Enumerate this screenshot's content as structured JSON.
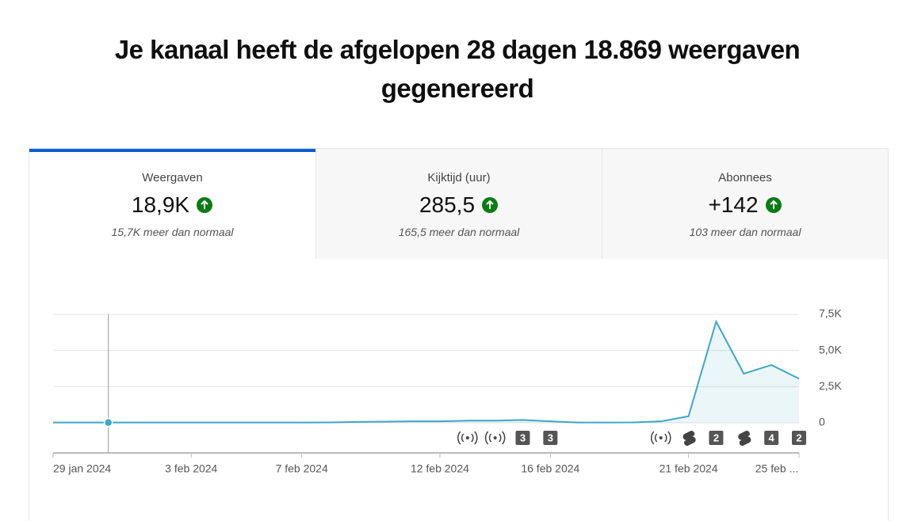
{
  "header": {
    "title": "Je kanaal heeft de afgelopen 28 dagen 18.869 weergaven gegenereerd"
  },
  "tabs": [
    {
      "label": "Weergaven",
      "value": "18,9K",
      "comparison": "15,7K meer dan normaal"
    },
    {
      "label": "Kijktijd (uur)",
      "value": "285,5",
      "comparison": "165,5 meer dan normaal"
    },
    {
      "label": "Abonnees",
      "value": "+142",
      "comparison": "103 meer dan normaal"
    }
  ],
  "chart_data": {
    "type": "line",
    "categories": [
      "29 jan 2024",
      null,
      null,
      null,
      null,
      "3 feb 2024",
      null,
      null,
      null,
      "7 feb 2024",
      null,
      null,
      null,
      null,
      "12 feb 2024",
      null,
      null,
      null,
      "16 feb 2024",
      null,
      null,
      null,
      null,
      "21 feb 2024",
      null,
      null,
      null,
      "25 feb ..."
    ],
    "series": [
      {
        "name": "Weergaven",
        "color": "#3ea6c8",
        "values": [
          20,
          20,
          20,
          20,
          20,
          20,
          20,
          20,
          20,
          20,
          30,
          60,
          80,
          100,
          100,
          150,
          150,
          200,
          100,
          20,
          20,
          30,
          100,
          450,
          7000,
          3400,
          4000,
          3050
        ]
      }
    ],
    "ylim": [
      0,
      7500
    ],
    "yticks": [
      0,
      {
        "value": 2500,
        "label": "2,5K"
      },
      {
        "value": 5000,
        "label": "5,0K"
      },
      {
        "value": 7500,
        "label": "7,5K"
      }
    ],
    "grid": true,
    "markers": [
      "3",
      "3",
      "2",
      "4",
      "2"
    ]
  }
}
